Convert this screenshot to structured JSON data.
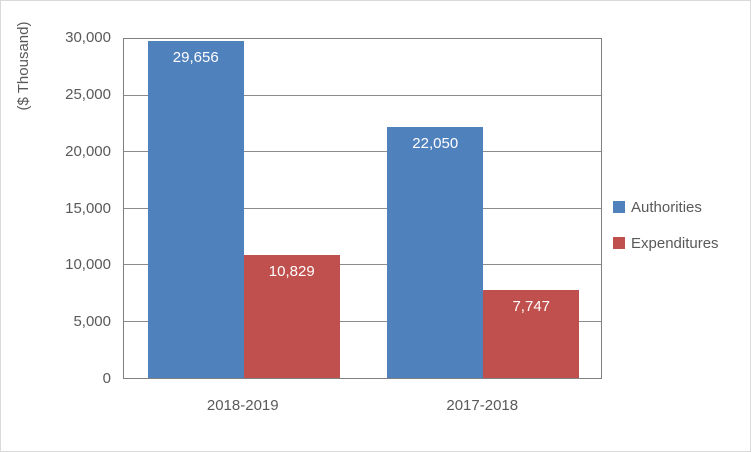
{
  "chart_data": {
    "type": "bar",
    "categories": [
      "2018-2019",
      "2017-2018"
    ],
    "series": [
      {
        "name": "Authorities",
        "color": "#4F81BD",
        "values": [
          29656,
          22050
        ]
      },
      {
        "name": "Expenditures",
        "color": "#C0504D",
        "values": [
          10829,
          7747
        ]
      }
    ],
    "title": "",
    "xlabel": "",
    "ylabel": "($ Thousand)",
    "ylim": [
      0,
      30000
    ],
    "ytick_interval": 5000,
    "ytick_labels": [
      "0",
      "5,000",
      "10,000",
      "15,000",
      "20,000",
      "25,000",
      "30,000"
    ],
    "data_labels": [
      "29,656",
      "22,050",
      "10,829",
      "7,747"
    ],
    "grid": true,
    "legend_position": "right",
    "colors": {
      "text": "#595959",
      "axis_line": "#808080",
      "gridline": "#8C8C8C",
      "page_border": "#D9D9D9",
      "data_label_text": "#FFFFFF"
    }
  }
}
